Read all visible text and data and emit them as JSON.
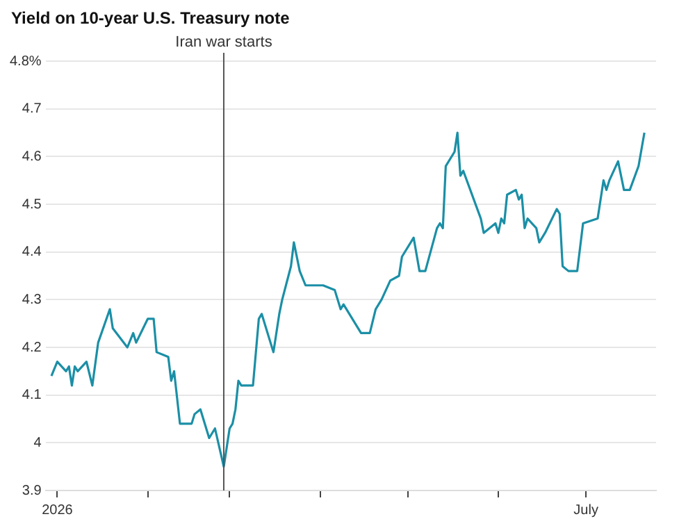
{
  "chart_data": {
    "type": "line",
    "title": "Yield on 10-year U.S. Treasury note",
    "x": [
      "2025-12-30",
      "2026-01-01",
      "2026-01-04",
      "2026-01-05",
      "2026-01-06",
      "2026-01-07",
      "2026-01-08",
      "2026-01-11",
      "2026-01-13",
      "2026-01-15",
      "2026-01-19",
      "2026-01-20",
      "2026-01-25",
      "2026-01-27",
      "2026-01-28",
      "2026-02-01",
      "2026-02-03",
      "2026-02-04",
      "2026-02-08",
      "2026-02-09",
      "2026-02-10",
      "2026-02-12",
      "2026-02-16",
      "2026-02-17",
      "2026-02-19",
      "2026-02-22",
      "2026-02-24",
      "2026-02-27",
      "2026-03-01",
      "2026-03-02",
      "2026-03-03",
      "2026-03-04",
      "2026-03-05",
      "2026-03-09",
      "2026-03-11",
      "2026-03-12",
      "2026-03-16",
      "2026-03-17",
      "2026-03-18",
      "2026-03-19",
      "2026-03-22",
      "2026-03-23",
      "2026-03-25",
      "2026-03-27",
      "2026-04-02",
      "2026-04-06",
      "2026-04-08",
      "2026-04-09",
      "2026-04-13",
      "2026-04-15",
      "2026-04-18",
      "2026-04-20",
      "2026-04-22",
      "2026-04-25",
      "2026-04-28",
      "2026-04-29",
      "2026-05-03",
      "2026-05-05",
      "2026-05-07",
      "2026-05-11",
      "2026-05-12",
      "2026-05-13",
      "2026-05-14",
      "2026-05-17",
      "2026-05-18",
      "2026-05-19",
      "2026-05-20",
      "2026-05-26",
      "2026-05-27",
      "2026-05-31",
      "2026-06-01",
      "2026-06-02",
      "2026-06-03",
      "2026-06-04",
      "2026-06-07",
      "2026-06-08",
      "2026-06-09",
      "2026-06-10",
      "2026-06-11",
      "2026-06-14",
      "2026-06-15",
      "2026-06-17",
      "2026-06-21",
      "2026-06-22",
      "2026-06-23",
      "2026-06-25",
      "2026-06-28",
      "2026-06-30",
      "2026-07-05",
      "2026-07-07",
      "2026-07-08",
      "2026-07-09",
      "2026-07-12",
      "2026-07-14",
      "2026-07-16",
      "2026-07-19",
      "2026-07-21"
    ],
    "series": [
      {
        "color": "#1b8fa6",
        "values": [
          4.14,
          4.17,
          4.15,
          4.16,
          4.12,
          4.16,
          4.15,
          4.17,
          4.12,
          4.21,
          4.28,
          4.24,
          4.2,
          4.23,
          4.21,
          4.26,
          4.26,
          4.19,
          4.18,
          4.13,
          4.15,
          4.04,
          4.04,
          4.06,
          4.07,
          4.01,
          4.03,
          3.95,
          4.03,
          4.04,
          4.07,
          4.13,
          4.12,
          4.12,
          4.26,
          4.27,
          4.19,
          4.23,
          4.27,
          4.3,
          4.37,
          4.42,
          4.36,
          4.33,
          4.33,
          4.32,
          4.28,
          4.29,
          4.25,
          4.23,
          4.23,
          4.28,
          4.3,
          4.34,
          4.35,
          4.39,
          4.43,
          4.36,
          4.36,
          4.45,
          4.46,
          4.45,
          4.58,
          4.61,
          4.65,
          4.56,
          4.57,
          4.47,
          4.44,
          4.46,
          4.44,
          4.47,
          4.46,
          4.52,
          4.53,
          4.51,
          4.52,
          4.45,
          4.47,
          4.45,
          4.42,
          4.44,
          4.49,
          4.48,
          4.37,
          4.36,
          4.36,
          4.46,
          4.47,
          4.55,
          4.53,
          4.55,
          4.59,
          4.53,
          4.53,
          4.58,
          4.65
        ]
      }
    ],
    "xlim": [
      "2025-12-28",
      "2026-07-25"
    ],
    "xticks": [
      {
        "value": "2026-01-01",
        "label": "2026"
      },
      {
        "value": "2026-02-01",
        "label": null
      },
      {
        "value": "2026-03-01",
        "label": null
      },
      {
        "value": "2026-04-01",
        "label": null
      },
      {
        "value": "2026-05-01",
        "label": null
      },
      {
        "value": "2026-06-01",
        "label": null
      },
      {
        "value": "2026-07-01",
        "label": "July"
      }
    ],
    "ylim": [
      3.9,
      4.8
    ],
    "yticks": [
      3.9,
      4.0,
      4.1,
      4.2,
      4.3,
      4.4,
      4.5,
      4.6,
      4.7,
      {
        "value": 4.8,
        "label": "4.8%"
      }
    ],
    "grid": "y",
    "legend": false,
    "marker": "none",
    "line_style": "solid",
    "ref_lines": [
      {
        "axis": "x",
        "value": "2026-02-27",
        "label": "Iran war starts",
        "color": "#555555"
      }
    ]
  }
}
